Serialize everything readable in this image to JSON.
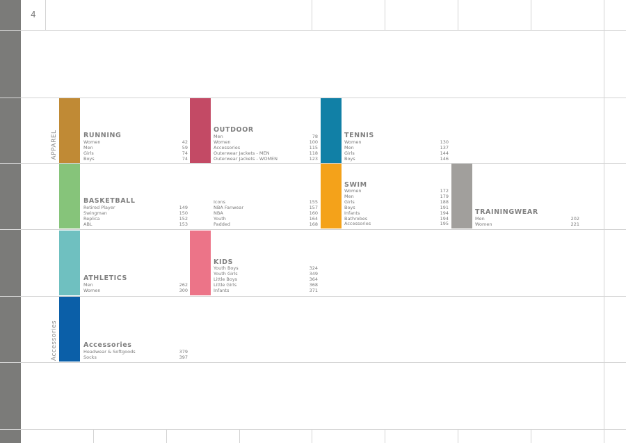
{
  "page": {
    "number": "4"
  },
  "side_labels": {
    "apparel": "APPAREL",
    "accessories": "Accessories"
  },
  "colors": {
    "running": "#c08a35",
    "outdoor": "#c34a65",
    "tennis": "#1180a6",
    "basketball": "#86c47a",
    "swim": "#f4a21a",
    "trainingwear": "#a19f9c",
    "athletics": "#6fc0c0",
    "kids": "#ec7488",
    "accessories": "#0b5fa8"
  },
  "sections": {
    "running": {
      "title": "RUNNING",
      "items": [
        {
          "label": "Women",
          "page": "42"
        },
        {
          "label": "Men",
          "page": "59"
        },
        {
          "label": "Girls",
          "page": "74"
        },
        {
          "label": "Boys",
          "page": "74"
        }
      ]
    },
    "outdoor": {
      "title": "OUTDOOR",
      "items": [
        {
          "label": "Men",
          "page": "78"
        },
        {
          "label": "Women",
          "page": "100"
        },
        {
          "label": "Accessories",
          "page": "115"
        },
        {
          "label": "Outerwear Jackets - MEN",
          "page": "118"
        },
        {
          "label": "Outerwear Jackets - WOMEN",
          "page": "123"
        }
      ]
    },
    "tennis": {
      "title": "TENNIS",
      "items": [
        {
          "label": "Women",
          "page": "130"
        },
        {
          "label": "Men",
          "page": "137"
        },
        {
          "label": "Girls",
          "page": "144"
        },
        {
          "label": "Boys",
          "page": "146"
        }
      ]
    },
    "basketball": {
      "title": "BASKETBALL",
      "items": [
        {
          "label": "Retired Player",
          "page": "149"
        },
        {
          "label": "Swingman",
          "page": "150"
        },
        {
          "label": "Replica",
          "page": "152"
        },
        {
          "label": "ABL",
          "page": "153"
        }
      ]
    },
    "basketball_more": {
      "items": [
        {
          "label": "Icons",
          "page": "155"
        },
        {
          "label": "NBA Fanwear",
          "page": "157"
        },
        {
          "label": "NBA",
          "page": "160"
        },
        {
          "label": "Youth",
          "page": "164"
        },
        {
          "label": "Padded",
          "page": "168"
        }
      ]
    },
    "swim": {
      "title": "SWIM",
      "items": [
        {
          "label": "Women",
          "page": "172"
        },
        {
          "label": "Men",
          "page": "179"
        },
        {
          "label": "Girls",
          "page": "188"
        },
        {
          "label": "Boys",
          "page": "191"
        },
        {
          "label": "Infants",
          "page": "194"
        },
        {
          "label": "Bathrobes",
          "page": "194"
        },
        {
          "label": "Accessories",
          "page": "195"
        }
      ]
    },
    "trainingwear": {
      "title": "TRAININGWEAR",
      "items": [
        {
          "label": "Men",
          "page": "202"
        },
        {
          "label": "Women",
          "page": "221"
        }
      ]
    },
    "athletics": {
      "title": "ATHLETICS",
      "items": [
        {
          "label": "Men",
          "page": "262"
        },
        {
          "label": "Women",
          "page": "300"
        }
      ]
    },
    "kids": {
      "title": "KIDS",
      "items": [
        {
          "label": "Youth Boys",
          "page": "324"
        },
        {
          "label": "Youth Girls",
          "page": "349"
        },
        {
          "label": "Little Boys",
          "page": "364"
        },
        {
          "label": "Little Girls",
          "page": "368"
        },
        {
          "label": "Infants",
          "page": "371"
        }
      ]
    },
    "accessories": {
      "title": "Accessories",
      "items": [
        {
          "label": "Headwear & Softgoods",
          "page": "379"
        },
        {
          "label": "Socks",
          "page": "397"
        }
      ]
    }
  }
}
